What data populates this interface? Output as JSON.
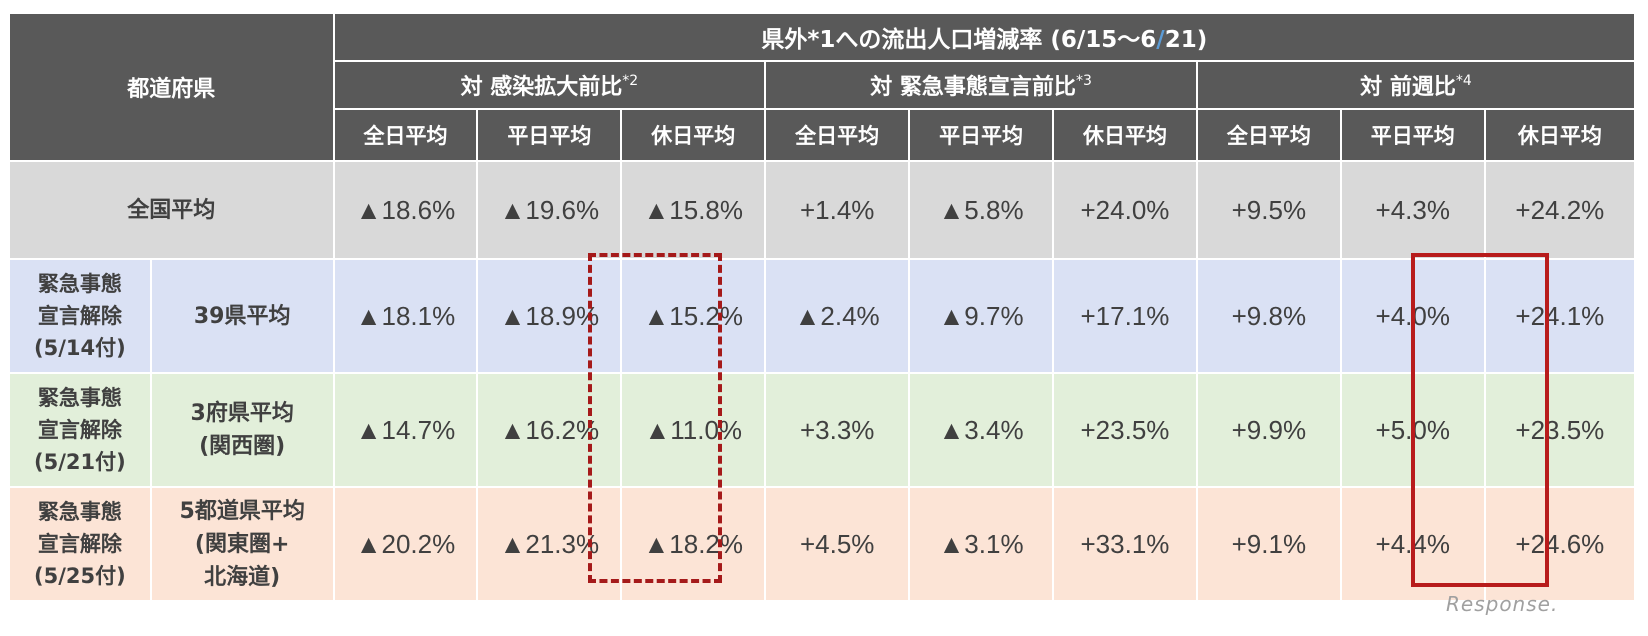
{
  "table": {
    "pref_header": "都道府県",
    "title_pre": "県外*1への流出人口増減率 (6/15〜6",
    "title_slash": "/",
    "title_post": "21)",
    "groups": [
      {
        "label": "対 感染拡大前比",
        "note": "*2"
      },
      {
        "label": "対 緊急事態宣言前比",
        "note": "*3"
      },
      {
        "label": "対 前週比",
        "note": "*4"
      }
    ],
    "subheaders": [
      "全日平均",
      "平日平均",
      "休日平均",
      "全日平均",
      "平日平均",
      "休日平均",
      "全日平均",
      "平日平均",
      "休日平均"
    ],
    "rows": [
      {
        "label": "全国平均",
        "values": [
          "▲18.6%",
          "▲19.6%",
          "▲15.8%",
          "+1.4%",
          "▲5.8%",
          "+24.0%",
          "+9.5%",
          "+4.3%",
          "+24.2%"
        ]
      },
      {
        "group_lines": [
          "緊急事態",
          "宣言解除",
          "(5/14付)"
        ],
        "label_lines": [
          "39県平均"
        ],
        "values": [
          "▲18.1%",
          "▲18.9%",
          "▲15.2%",
          "▲2.4%",
          "▲9.7%",
          "+17.1%",
          "+9.8%",
          "+4.0%",
          "+24.1%"
        ]
      },
      {
        "group_lines": [
          "緊急事態",
          "宣言解除",
          "(5/21付)"
        ],
        "label_lines": [
          "3府県平均",
          "(関西圏)"
        ],
        "values": [
          "▲14.7%",
          "▲16.2%",
          "▲11.0%",
          "+3.3%",
          "▲3.4%",
          "+23.5%",
          "+9.9%",
          "+5.0%",
          "+23.5%"
        ]
      },
      {
        "group_lines": [
          "緊急事態",
          "宣言解除",
          "(5/25付)"
        ],
        "label_lines": [
          "5都道県平均",
          "(関東圏+",
          "北海道)"
        ],
        "values": [
          "▲20.2%",
          "▲21.3%",
          "▲18.2%",
          "+4.5%",
          "▲3.1%",
          "+33.1%",
          "+9.1%",
          "+4.4%",
          "+24.6%"
        ]
      }
    ]
  },
  "colors": {
    "header_bg": "#595959",
    "national_bg": "#d9d9d9",
    "row_39_bg": "#dae1f4",
    "row_kansai_bg": "#e2efda",
    "row_kanto_bg": "#fce4d6",
    "highlight_red": "#b81c1c"
  },
  "watermark": "Response."
}
